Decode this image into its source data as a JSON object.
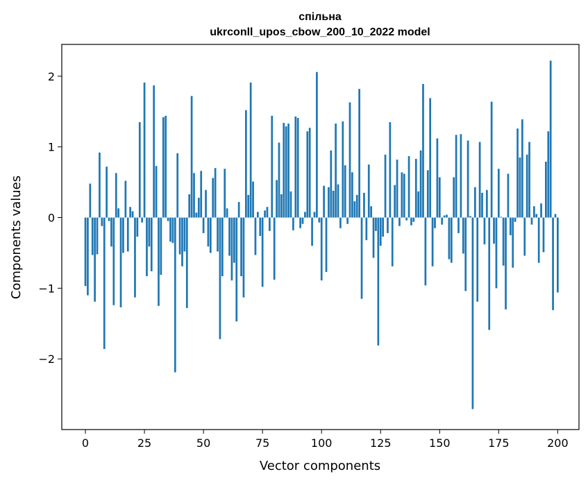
{
  "chart_data": {
    "type": "bar",
    "title_line1": "спільна",
    "title_line2": "ukrconll_upos_cbow_200_10_2022 model",
    "xlabel": "Vector components",
    "ylabel": "Components values",
    "xlim": [
      -10,
      209
    ],
    "ylim": [
      -3.0,
      2.45
    ],
    "xticks": [
      0,
      25,
      50,
      75,
      100,
      125,
      150,
      175,
      200
    ],
    "yticks": [
      -2,
      -1,
      0,
      1,
      2
    ],
    "ytick_labels": [
      "−2",
      "−1",
      "0",
      "1",
      "2"
    ],
    "bar_color": "#1f77b4",
    "grid": false,
    "values": [
      -0.97,
      -1.1,
      0.48,
      -0.53,
      -1.19,
      -0.52,
      0.92,
      -0.12,
      -1.86,
      0.72,
      -0.05,
      -0.41,
      -1.24,
      0.63,
      0.13,
      -1.27,
      -0.5,
      0.52,
      -0.48,
      0.15,
      0.09,
      -1.13,
      -0.27,
      1.35,
      -0.07,
      1.91,
      -0.83,
      -0.41,
      -0.76,
      1.87,
      0.73,
      -1.25,
      -0.81,
      1.42,
      1.44,
      -0.05,
      -0.34,
      -0.36,
      -2.19,
      0.91,
      -0.52,
      -0.69,
      -0.48,
      -1.28,
      0.33,
      1.72,
      0.63,
      0.07,
      0.28,
      0.66,
      -0.22,
      0.39,
      -0.41,
      -0.5,
      0.56,
      0.7,
      -0.48,
      -1.72,
      -0.83,
      0.69,
      0.13,
      -0.54,
      -0.89,
      -0.64,
      -1.47,
      0.22,
      -0.83,
      -1.13,
      1.52,
      0.32,
      1.91,
      0.51,
      -0.53,
      0.08,
      -0.26,
      -0.98,
      0.1,
      0.15,
      -0.19,
      1.44,
      -0.88,
      0.53,
      1.06,
      0.33,
      1.34,
      1.29,
      1.33,
      0.37,
      -0.18,
      1.43,
      1.41,
      -0.15,
      -0.09,
      0.08,
      1.22,
      1.27,
      -0.4,
      0.08,
      2.06,
      -0.07,
      -0.89,
      0.45,
      -0.77,
      0.43,
      0.95,
      0.38,
      1.33,
      0.47,
      -0.15,
      1.36,
      0.74,
      -0.09,
      1.63,
      0.64,
      0.23,
      0.32,
      1.82,
      -1.15,
      0.35,
      -0.32,
      0.75,
      0.16,
      -0.57,
      -0.19,
      -1.81,
      -0.4,
      -0.27,
      0.89,
      -0.22,
      1.35,
      -0.69,
      0.46,
      0.82,
      -0.12,
      0.64,
      0.62,
      -0.04,
      0.87,
      -0.11,
      -0.06,
      0.83,
      0.37,
      0.95,
      1.89,
      -0.96,
      0.67,
      1.69,
      -0.69,
      -0.15,
      1.12,
      0.57,
      -0.1,
      0.03,
      0.04,
      -0.59,
      -0.64,
      0.57,
      1.17,
      -0.22,
      1.18,
      -0.51,
      -1.04,
      1.09,
      0.02,
      -2.71,
      0.43,
      -1.19,
      1.07,
      0.35,
      -0.38,
      0.39,
      -1.59,
      1.64,
      -0.37,
      -1.0,
      0.69,
      0.01,
      -0.68,
      -1.3,
      0.62,
      -0.25,
      -0.71,
      -0.06,
      1.26,
      0.85,
      1.39,
      -0.54,
      0.89,
      1.07,
      -0.1,
      0.16,
      0.05,
      -0.64,
      0.2,
      -0.49,
      0.79,
      1.22,
      2.22,
      -1.31,
      0.05,
      -1.06
    ]
  }
}
